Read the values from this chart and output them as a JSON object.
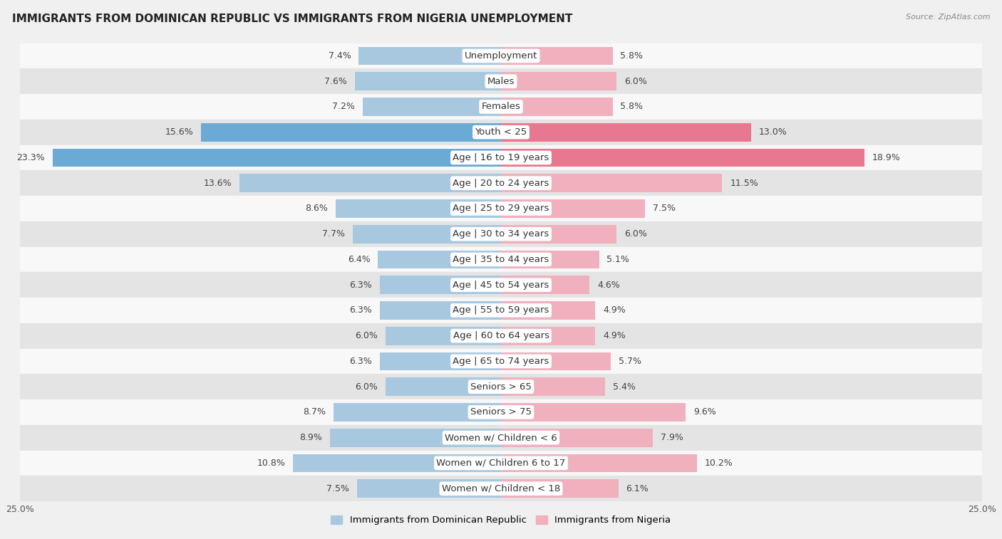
{
  "title": "IMMIGRANTS FROM DOMINICAN REPUBLIC VS IMMIGRANTS FROM NIGERIA UNEMPLOYMENT",
  "source": "Source: ZipAtlas.com",
  "categories": [
    "Unemployment",
    "Males",
    "Females",
    "Youth < 25",
    "Age | 16 to 19 years",
    "Age | 20 to 24 years",
    "Age | 25 to 29 years",
    "Age | 30 to 34 years",
    "Age | 35 to 44 years",
    "Age | 45 to 54 years",
    "Age | 55 to 59 years",
    "Age | 60 to 64 years",
    "Age | 65 to 74 years",
    "Seniors > 65",
    "Seniors > 75",
    "Women w/ Children < 6",
    "Women w/ Children 6 to 17",
    "Women w/ Children < 18"
  ],
  "left_values": [
    7.4,
    7.6,
    7.2,
    15.6,
    23.3,
    13.6,
    8.6,
    7.7,
    6.4,
    6.3,
    6.3,
    6.0,
    6.3,
    6.0,
    8.7,
    8.9,
    10.8,
    7.5
  ],
  "right_values": [
    5.8,
    6.0,
    5.8,
    13.0,
    18.9,
    11.5,
    7.5,
    6.0,
    5.1,
    4.6,
    4.9,
    4.9,
    5.7,
    5.4,
    9.6,
    7.9,
    10.2,
    6.1
  ],
  "left_color": "#a8c8e0",
  "right_color": "#f0b0be",
  "left_highlight_color": "#6aaad4",
  "right_highlight_color": "#e87890",
  "highlight_rows": [
    3,
    4
  ],
  "bg_color": "#f0f0f0",
  "row_odd_color": "#f8f8f8",
  "row_even_color": "#e4e4e4",
  "x_min": -25.0,
  "x_max": 25.0,
  "legend_left": "Immigrants from Dominican Republic",
  "legend_right": "Immigrants from Nigeria",
  "bar_height": 0.72,
  "label_fontsize": 9.5,
  "title_fontsize": 11,
  "value_fontsize": 9
}
